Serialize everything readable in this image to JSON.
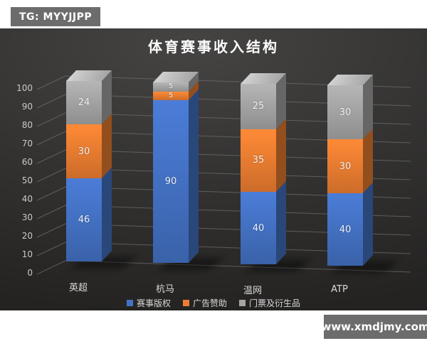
{
  "badges": {
    "tg": "TG: MYYJJPP",
    "watermark": "www.xmdjmy.com"
  },
  "chart_data": {
    "type": "bar",
    "variant": "3d-stacked-column",
    "title": "体育赛事收入结构",
    "categories": [
      "英超",
      "杭马",
      "温网",
      "ATP"
    ],
    "series": [
      {
        "name": "赛事版权",
        "color": "#4472C4",
        "values": [
          46,
          90,
          40,
          40
        ]
      },
      {
        "name": "广告赞助",
        "color": "#ED7D31",
        "values": [
          30,
          5,
          35,
          30
        ]
      },
      {
        "name": "门票及衍生品",
        "color": "#A5A5A5",
        "values": [
          24,
          5,
          25,
          30
        ]
      }
    ],
    "xlabel": "",
    "ylabel": "",
    "ylim": [
      0,
      100
    ],
    "ytick_step": 10,
    "grid": true,
    "data_labels": true,
    "legend_position": "bottom",
    "background": "#333231",
    "gridline_color": "#6e6e6e",
    "text_color": "#d9d9d9"
  }
}
